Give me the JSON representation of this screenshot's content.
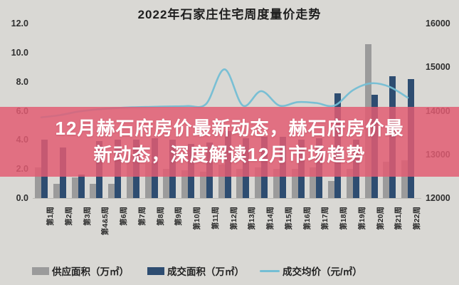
{
  "title": "2022年石家庄住宅周度量价走势",
  "overlay": {
    "line1": "12月赫石府房价最新动态，赫石府房价最",
    "line2": "新动态，深度解读12月市场趋势",
    "band_color": "#e25c72",
    "band_alpha": 0.84,
    "text_color": "#ffffff"
  },
  "colors": {
    "background": "#d9d8d4",
    "supply_bar": "#9b9b9b",
    "transaction_bar": "#2e4d71",
    "price_line": "#74bed4",
    "axis_text": "#2f2f2f"
  },
  "chart_data": {
    "type": "bar",
    "title": "2022年石家庄住宅周度量价走势",
    "categories": [
      "第1周",
      "第2周",
      "第3周",
      "第4&5周",
      "第6周",
      "第7周",
      "第8周",
      "第9周",
      "第10周",
      "第11周",
      "第12周",
      "第13周",
      "第14周",
      "第15周",
      "第16周",
      "第17周",
      "第18周",
      "第19周",
      "第20周",
      "第21周",
      "第22周"
    ],
    "series": [
      {
        "name": "供应面积（万㎡）",
        "type": "bar",
        "axis": "left",
        "color": "#9b9b9b",
        "values": [
          2.1,
          1.0,
          1.4,
          1.0,
          1.0,
          3.0,
          2.4,
          2.0,
          1.9,
          1.8,
          2.3,
          2.0,
          2.1,
          2.0,
          2.0,
          2.1,
          1.2,
          2.0,
          10.6,
          2.5,
          2.6
        ]
      },
      {
        "name": "成交面积（万㎡）",
        "type": "bar",
        "axis": "left",
        "color": "#2e4d71",
        "values": [
          4.0,
          3.5,
          1.6,
          3.9,
          4.0,
          4.0,
          4.1,
          4.0,
          3.7,
          3.8,
          4.6,
          4.1,
          4.2,
          4.2,
          4.0,
          4.1,
          7.2,
          4.0,
          7.1,
          8.4,
          8.2
        ]
      },
      {
        "name": "成交均价（元/㎡）",
        "type": "line",
        "axis": "right",
        "color": "#74bed4",
        "values": [
          13850,
          13900,
          13980,
          14030,
          14060,
          14080,
          14090,
          14100,
          14110,
          14160,
          14950,
          14120,
          14450,
          14120,
          14200,
          14180,
          14120,
          14470,
          14630,
          14550,
          14300
        ]
      }
    ],
    "left_axis": {
      "ticks": [
        "12.0",
        "10.0",
        "8.0",
        "6.0",
        "4.0",
        "2.0",
        "0.0"
      ],
      "min": 0,
      "max": 12
    },
    "right_axis": {
      "ticks": [
        "16000",
        "15000",
        "14000",
        "13000",
        "12000"
      ],
      "min": 12000,
      "max": 16000
    },
    "legend_position": "bottom",
    "grid": false
  }
}
